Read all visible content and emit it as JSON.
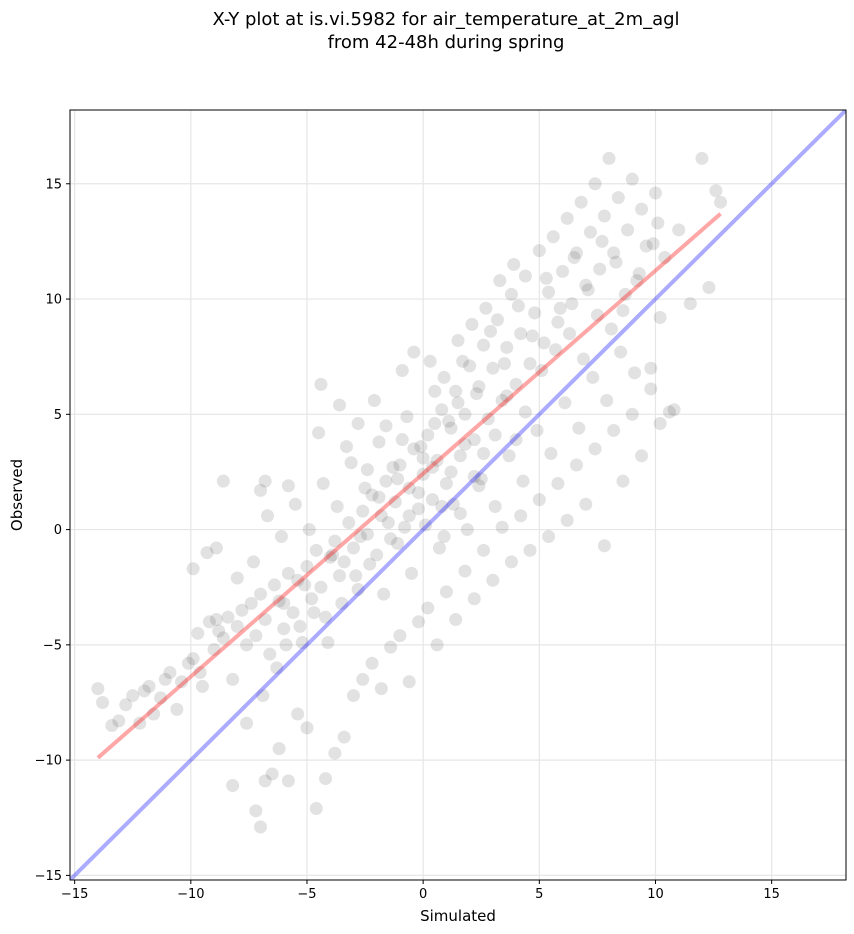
{
  "chart_data": {
    "type": "scatter",
    "title_lines": [
      "X-Y plot at is.vi.5982 for air_temperature_at_2m_agl",
      "from 42-48h during spring"
    ],
    "xlabel": "Simulated",
    "ylabel": "Observed",
    "xlim": [
      -15.2,
      18.2
    ],
    "ylim": [
      -15.2,
      18.2
    ],
    "xticks": [
      -15,
      -10,
      -5,
      0,
      5,
      10,
      15
    ],
    "yticks": [
      -15,
      -10,
      -5,
      0,
      5,
      10,
      15
    ],
    "xtick_labels": [
      "−15",
      "−10",
      "−5",
      "0",
      "5",
      "10",
      "15"
    ],
    "ytick_labels": [
      "−15",
      "−10",
      "−5",
      "0",
      "5",
      "10",
      "15"
    ],
    "grid": true,
    "marker_color": "#333333",
    "identity_line": {
      "x": [
        -15.2,
        18.2
      ],
      "y": [
        -15.2,
        18.2
      ],
      "color": "#0000ff"
    },
    "regression_line": {
      "x": [
        -14.0,
        12.8
      ],
      "y": [
        -9.9,
        13.7
      ],
      "color": "#ff0000"
    },
    "points": [
      [
        -14.0,
        -6.9
      ],
      [
        -13.8,
        -7.5
      ],
      [
        -13.4,
        -8.5
      ],
      [
        -13.1,
        -8.3
      ],
      [
        -12.8,
        -7.6
      ],
      [
        -12.5,
        -7.2
      ],
      [
        -12.2,
        -8.4
      ],
      [
        -12.0,
        -7.0
      ],
      [
        -11.8,
        -6.8
      ],
      [
        -11.6,
        -8.0
      ],
      [
        -11.3,
        -7.3
      ],
      [
        -11.1,
        -6.5
      ],
      [
        -10.9,
        -6.2
      ],
      [
        -10.6,
        -7.8
      ],
      [
        -10.4,
        -6.6
      ],
      [
        -10.1,
        -5.8
      ],
      [
        -9.9,
        -5.6
      ],
      [
        -9.7,
        -4.5
      ],
      [
        -9.5,
        -6.8
      ],
      [
        -9.2,
        -4.0
      ],
      [
        -9.0,
        -5.2
      ],
      [
        -8.8,
        -4.4
      ],
      [
        -8.6,
        -4.7
      ],
      [
        -8.4,
        -3.8
      ],
      [
        -8.2,
        -6.5
      ],
      [
        -8.0,
        -4.2
      ],
      [
        -7.8,
        -3.5
      ],
      [
        -7.6,
        -5.0
      ],
      [
        -7.4,
        -3.2
      ],
      [
        -7.2,
        -4.6
      ],
      [
        -7.0,
        -2.8
      ],
      [
        -6.8,
        -3.9
      ],
      [
        -6.6,
        -5.4
      ],
      [
        -6.4,
        -2.4
      ],
      [
        -6.2,
        -3.1
      ],
      [
        -6.0,
        -4.3
      ],
      [
        -5.8,
        -1.9
      ],
      [
        -5.6,
        -3.6
      ],
      [
        -5.4,
        -2.2
      ],
      [
        -5.2,
        -4.9
      ],
      [
        -5.0,
        -1.6
      ],
      [
        -4.8,
        -3.0
      ],
      [
        -4.6,
        -0.9
      ],
      [
        -4.4,
        -2.5
      ],
      [
        -4.2,
        -3.8
      ],
      [
        -4.0,
        -1.2
      ],
      [
        -3.8,
        -0.5
      ],
      [
        -3.6,
        -2.0
      ],
      [
        -3.4,
        -1.4
      ],
      [
        -3.2,
        0.3
      ],
      [
        -3.0,
        -0.8
      ],
      [
        -2.8,
        -2.6
      ],
      [
        -2.6,
        0.8
      ],
      [
        -2.4,
        -0.2
      ],
      [
        -2.2,
        1.5
      ],
      [
        -2.0,
        -1.1
      ],
      [
        -1.8,
        0.6
      ],
      [
        -1.6,
        2.1
      ],
      [
        -1.4,
        -0.4
      ],
      [
        -1.2,
        1.2
      ],
      [
        -1.0,
        2.8
      ],
      [
        -0.8,
        0.1
      ],
      [
        -0.6,
        1.8
      ],
      [
        -0.4,
        3.5
      ],
      [
        -0.2,
        0.9
      ],
      [
        0.0,
        2.4
      ],
      [
        0.2,
        4.1
      ],
      [
        0.4,
        1.3
      ],
      [
        0.6,
        3.0
      ],
      [
        0.8,
        5.2
      ],
      [
        1.0,
        2.0
      ],
      [
        1.2,
        4.4
      ],
      [
        1.4,
        6.0
      ],
      [
        1.6,
        3.2
      ],
      [
        1.8,
        5.0
      ],
      [
        2.0,
        7.1
      ],
      [
        2.2,
        3.9
      ],
      [
        2.4,
        6.2
      ],
      [
        2.6,
        8.0
      ],
      [
        2.8,
        4.8
      ],
      [
        3.0,
        7.0
      ],
      [
        3.2,
        9.1
      ],
      [
        3.4,
        5.6
      ],
      [
        3.6,
        7.9
      ],
      [
        3.8,
        10.2
      ],
      [
        4.0,
        6.3
      ],
      [
        4.2,
        8.5
      ],
      [
        4.4,
        11.0
      ],
      [
        4.6,
        7.2
      ],
      [
        4.8,
        9.4
      ],
      [
        5.0,
        12.1
      ],
      [
        5.2,
        8.1
      ],
      [
        5.4,
        10.3
      ],
      [
        5.6,
        12.7
      ],
      [
        5.8,
        9.0
      ],
      [
        6.0,
        11.2
      ],
      [
        6.2,
        13.5
      ],
      [
        6.4,
        9.8
      ],
      [
        6.6,
        12.0
      ],
      [
        6.8,
        14.2
      ],
      [
        7.0,
        10.6
      ],
      [
        7.2,
        12.9
      ],
      [
        7.4,
        15.0
      ],
      [
        7.6,
        11.3
      ],
      [
        7.8,
        13.6
      ],
      [
        8.0,
        16.1
      ],
      [
        8.2,
        12.0
      ],
      [
        8.4,
        14.4
      ],
      [
        8.6,
        9.5
      ],
      [
        8.8,
        13.0
      ],
      [
        9.0,
        15.2
      ],
      [
        9.2,
        10.8
      ],
      [
        9.4,
        13.9
      ],
      [
        9.6,
        12.3
      ],
      [
        9.8,
        7.0
      ],
      [
        10.0,
        14.6
      ],
      [
        10.2,
        9.2
      ],
      [
        10.4,
        11.8
      ],
      [
        10.6,
        5.1
      ],
      [
        11.0,
        13.0
      ],
      [
        11.5,
        9.8
      ],
      [
        12.0,
        16.1
      ],
      [
        12.3,
        10.5
      ],
      [
        12.6,
        14.7
      ],
      [
        12.8,
        14.2
      ],
      [
        -7.2,
        -12.2
      ],
      [
        -7.0,
        -12.9
      ],
      [
        -6.8,
        -10.9
      ],
      [
        -6.5,
        -10.6
      ],
      [
        -6.2,
        -9.5
      ],
      [
        -5.8,
        -10.9
      ],
      [
        -5.4,
        -8.0
      ],
      [
        -5.0,
        -8.6
      ],
      [
        -4.6,
        -12.1
      ],
      [
        -4.2,
        -10.8
      ],
      [
        -3.8,
        -9.7
      ],
      [
        -3.4,
        -9.0
      ],
      [
        -3.0,
        -7.2
      ],
      [
        -2.6,
        -6.5
      ],
      [
        -2.2,
        -5.8
      ],
      [
        -1.8,
        -6.9
      ],
      [
        -1.4,
        -5.1
      ],
      [
        -1.0,
        -4.6
      ],
      [
        -0.6,
        -6.6
      ],
      [
        -0.2,
        -4.0
      ],
      [
        0.2,
        -3.4
      ],
      [
        0.6,
        -5.0
      ],
      [
        1.0,
        -2.7
      ],
      [
        1.4,
        -3.9
      ],
      [
        1.8,
        -1.8
      ],
      [
        2.2,
        -3.0
      ],
      [
        2.6,
        -0.9
      ],
      [
        3.0,
        -2.2
      ],
      [
        3.4,
        0.1
      ],
      [
        3.8,
        -1.4
      ],
      [
        4.2,
        0.6
      ],
      [
        4.6,
        -0.9
      ],
      [
        5.0,
        1.3
      ],
      [
        5.4,
        -0.3
      ],
      [
        5.8,
        2.0
      ],
      [
        6.2,
        0.4
      ],
      [
        6.6,
        2.8
      ],
      [
        7.0,
        1.1
      ],
      [
        7.4,
        3.5
      ],
      [
        7.8,
        -0.7
      ],
      [
        8.2,
        4.3
      ],
      [
        8.6,
        2.1
      ],
      [
        9.0,
        5.0
      ],
      [
        9.4,
        3.2
      ],
      [
        9.8,
        6.1
      ],
      [
        10.2,
        4.6
      ],
      [
        10.8,
        5.2
      ],
      [
        -8.2,
        -11.1
      ],
      [
        -7.6,
        -8.4
      ],
      [
        -6.9,
        -7.2
      ],
      [
        -6.3,
        -6.0
      ],
      [
        -5.9,
        -5.0
      ],
      [
        -5.3,
        -4.2
      ],
      [
        -4.7,
        -3.6
      ],
      [
        -4.1,
        -4.9
      ],
      [
        -3.5,
        -3.2
      ],
      [
        -2.9,
        -2.0
      ],
      [
        -2.3,
        -1.5
      ],
      [
        -1.7,
        -2.8
      ],
      [
        -1.1,
        -0.6
      ],
      [
        -0.5,
        -1.9
      ],
      [
        0.1,
        0.2
      ],
      [
        0.7,
        -0.8
      ],
      [
        1.3,
        1.1
      ],
      [
        1.9,
        0.0
      ],
      [
        2.5,
        2.2
      ],
      [
        3.1,
        1.0
      ],
      [
        3.7,
        3.2
      ],
      [
        4.3,
        2.1
      ],
      [
        4.9,
        4.3
      ],
      [
        5.5,
        3.3
      ],
      [
        6.1,
        5.5
      ],
      [
        6.7,
        4.4
      ],
      [
        7.3,
        6.6
      ],
      [
        7.9,
        5.6
      ],
      [
        8.5,
        7.7
      ],
      [
        9.1,
        6.8
      ],
      [
        -9.6,
        -6.2
      ],
      [
        -8.9,
        -3.9
      ],
      [
        -8.0,
        -2.1
      ],
      [
        -7.3,
        -1.4
      ],
      [
        -6.7,
        0.6
      ],
      [
        -6.1,
        -0.3
      ],
      [
        -5.5,
        1.1
      ],
      [
        -4.9,
        0.0
      ],
      [
        -4.3,
        2.0
      ],
      [
        -3.7,
        1.0
      ],
      [
        -3.1,
        2.9
      ],
      [
        -2.5,
        1.8
      ],
      [
        -1.9,
        3.8
      ],
      [
        -1.3,
        2.7
      ],
      [
        -0.7,
        4.9
      ],
      [
        -0.1,
        3.6
      ],
      [
        0.5,
        6.0
      ],
      [
        1.1,
        4.7
      ],
      [
        1.7,
        7.3
      ],
      [
        2.3,
        5.9
      ],
      [
        2.9,
        8.6
      ],
      [
        3.5,
        7.2
      ],
      [
        4.1,
        9.7
      ],
      [
        4.7,
        8.4
      ],
      [
        5.3,
        10.9
      ],
      [
        5.9,
        9.6
      ],
      [
        6.5,
        11.8
      ],
      [
        7.1,
        10.4
      ],
      [
        7.7,
        12.5
      ],
      [
        8.3,
        11.6
      ],
      [
        -0.9,
        6.9
      ],
      [
        -0.4,
        7.7
      ],
      [
        0.3,
        7.3
      ],
      [
        1.5,
        8.2
      ],
      [
        2.1,
        8.9
      ],
      [
        2.7,
        9.6
      ],
      [
        3.3,
        10.8
      ],
      [
        3.9,
        11.5
      ],
      [
        -4.5,
        4.2
      ],
      [
        -3.6,
        5.4
      ],
      [
        -2.8,
        4.6
      ],
      [
        -2.1,
        5.6
      ],
      [
        -4.4,
        6.3
      ],
      [
        -9.9,
        -1.7
      ],
      [
        -8.6,
        2.1
      ],
      [
        -7.0,
        1.7
      ],
      [
        -6.8,
        2.1
      ],
      [
        -5.8,
        1.9
      ],
      [
        -9.3,
        -1.0
      ],
      [
        -8.9,
        -0.8
      ],
      [
        0.9,
        -0.3
      ],
      [
        1.6,
        0.7
      ],
      [
        2.4,
        1.9
      ],
      [
        -0.2,
        1.6
      ],
      [
        0.4,
        2.7
      ],
      [
        -1.5,
        0.3
      ],
      [
        -2.7,
        -0.3
      ],
      [
        -3.9,
        -1.1
      ],
      [
        -5.1,
        -2.4
      ],
      [
        -6.0,
        -3.2
      ],
      [
        1.2,
        2.5
      ],
      [
        1.8,
        3.7
      ],
      [
        2.2,
        2.3
      ],
      [
        0.8,
        1.0
      ],
      [
        -0.6,
        0.6
      ],
      [
        -1.9,
        1.4
      ],
      [
        -1.1,
        2.2
      ],
      [
        0.0,
        3.1
      ],
      [
        3.1,
        4.1
      ],
      [
        3.6,
        5.8
      ],
      [
        4.4,
        5.1
      ],
      [
        4.0,
        3.9
      ],
      [
        2.6,
        3.3
      ],
      [
        1.5,
        5.5
      ],
      [
        0.5,
        4.6
      ],
      [
        -0.9,
        3.9
      ],
      [
        -2.4,
        2.6
      ],
      [
        -3.3,
        3.6
      ],
      [
        -1.6,
        4.5
      ],
      [
        0.9,
        6.6
      ],
      [
        5.1,
        6.9
      ],
      [
        5.7,
        7.8
      ],
      [
        6.3,
        8.5
      ],
      [
        6.9,
        7.4
      ],
      [
        7.5,
        9.3
      ],
      [
        8.1,
        8.7
      ],
      [
        8.7,
        10.2
      ],
      [
        9.3,
        11.1
      ],
      [
        9.9,
        12.4
      ],
      [
        10.1,
        13.3
      ]
    ]
  }
}
